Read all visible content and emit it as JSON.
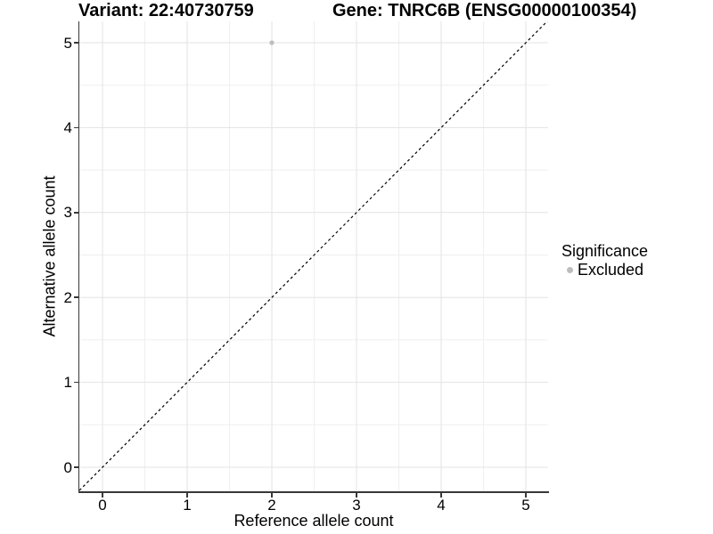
{
  "title": {
    "variant": "Variant: 22:40730759",
    "gene": "Gene: TNRC6B (ENSG00000100354)"
  },
  "x_axis": {
    "label": "Reference allele count",
    "tick_labels": [
      "0",
      "1",
      "2",
      "3",
      "4",
      "5"
    ]
  },
  "y_axis": {
    "label": "Alternative allele count",
    "tick_labels": [
      "0",
      "1",
      "2",
      "3",
      "4",
      "5"
    ]
  },
  "legend": {
    "title": "Significance",
    "items": [
      {
        "label": "Excluded",
        "color": "#bdbdbd"
      }
    ]
  },
  "chart_data": {
    "type": "scatter",
    "title": "Variant: 22:40730759   Gene: TNRC6B (ENSG00000100354)",
    "xlabel": "Reference allele count",
    "ylabel": "Alternative allele count",
    "xlim": [
      -0.27,
      5.27
    ],
    "ylim": [
      -0.27,
      5.27
    ],
    "xticks": [
      0,
      1,
      2,
      3,
      4,
      5
    ],
    "yticks": [
      0,
      1,
      2,
      3,
      4,
      5
    ],
    "minor_ticks": [
      0.5,
      1.5,
      2.5,
      3.5,
      4.5
    ],
    "grid": "major and minor gridlines, light gray on white panel",
    "legend_position": "right",
    "series": [
      {
        "name": "Excluded",
        "color": "#bdbdbd",
        "marker": "circle",
        "points": [
          [
            2,
            5
          ]
        ]
      }
    ],
    "abline": {
      "slope": 1,
      "intercept": 0,
      "style": "dashed",
      "color": "#000000"
    }
  },
  "colors": {
    "background": "#ffffff",
    "axis_line": "#383838",
    "grid_major": "#e3e3e3",
    "grid_minor": "#efefef",
    "point": "#bdbdbd",
    "dashed_line": "#000000",
    "text": "#000000"
  }
}
